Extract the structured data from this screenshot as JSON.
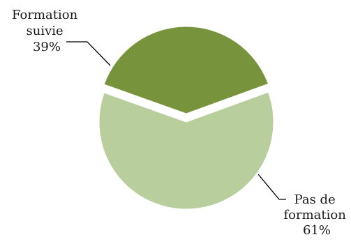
{
  "chart_data": {
    "type": "pie",
    "slices": [
      {
        "label_lines": [
          "Formation",
          "suivie"
        ],
        "value": 39,
        "percent_label": "39%",
        "color": "#77933c",
        "exploded": true
      },
      {
        "label_lines": [
          "Pas de",
          "formation"
        ],
        "value": 61,
        "percent_label": "61%",
        "color": "#b8ce9c",
        "exploded": false
      }
    ],
    "start_angle_deg": 20,
    "direction": "counterclockwise",
    "legend": "none"
  }
}
